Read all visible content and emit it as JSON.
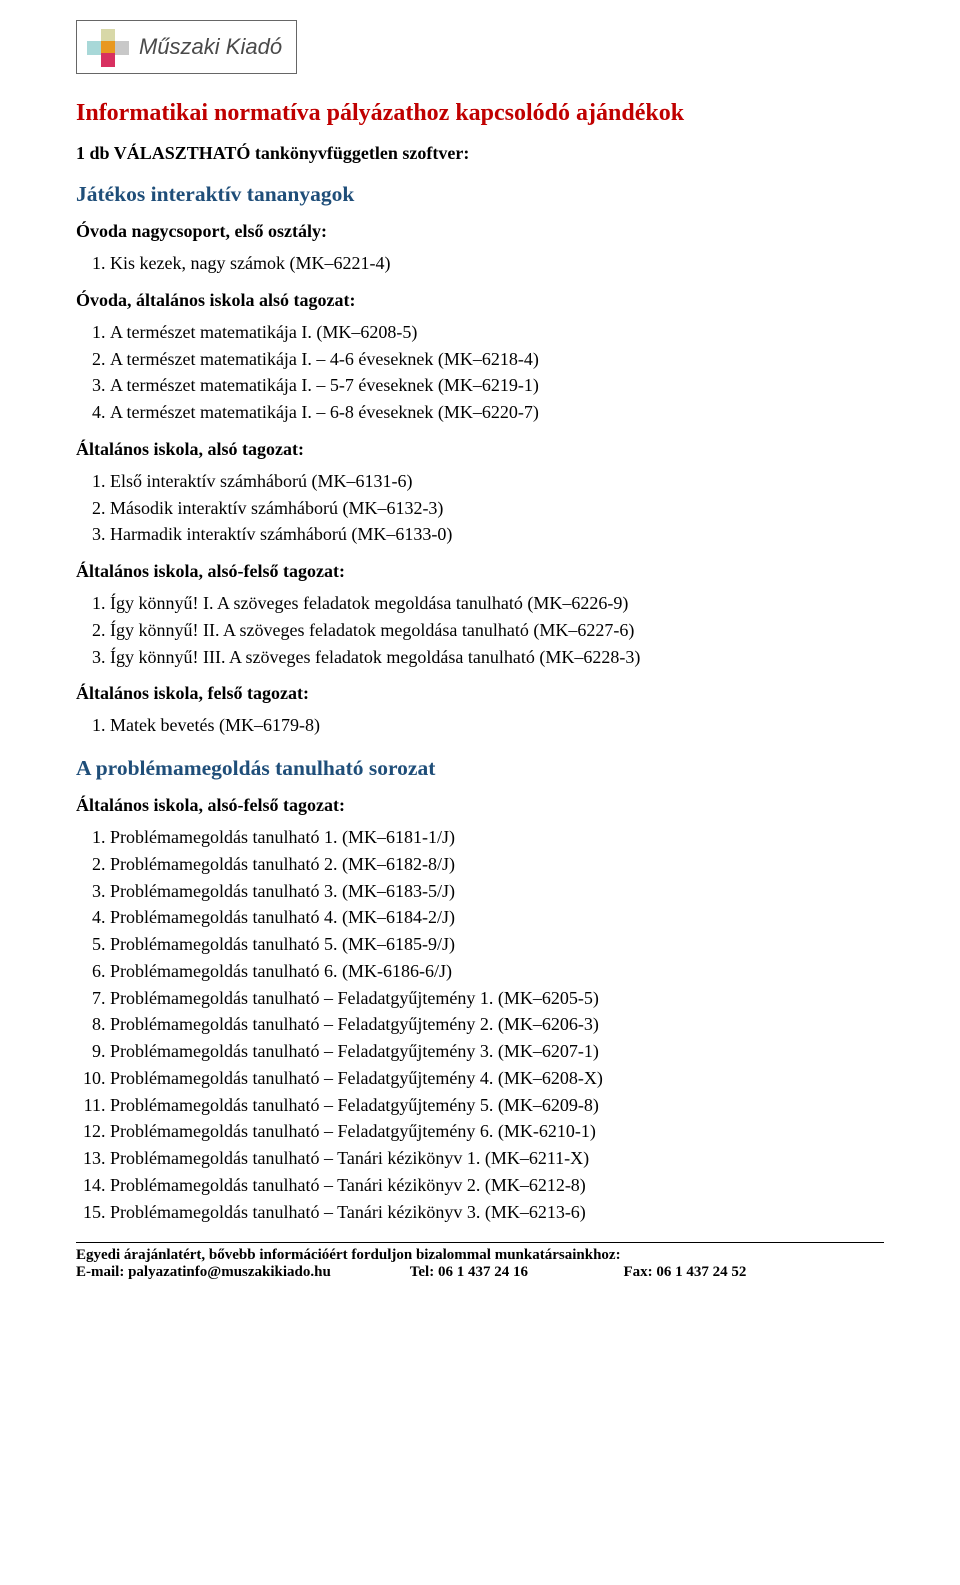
{
  "logo": {
    "name": "Műszaki Kiadó"
  },
  "title": "Informatikai normatíva pályázathoz kapcsolódó ajándékok",
  "choose_line": "1 db VÁLASZTHATÓ tankönyvfüggetlen szoftver:",
  "sections": {
    "jatekos": {
      "heading": "Játékos interaktív tananyagok",
      "groups": {
        "ovoda_nagy": {
          "label": "Óvoda nagycsoport, első osztály:",
          "items": [
            "Kis kezek, nagy számok (MK–6221-4)"
          ]
        },
        "ovoda_also": {
          "label": "Óvoda, általános iskola alsó tagozat:",
          "items": [
            "A természet matematikája I. (MK–6208-5)",
            "A természet matematikája I. – 4-6 éveseknek (MK–6218-4)",
            "A természet matematikája I. – 5-7 éveseknek (MK–6219-1)",
            "A természet matematikája I. – 6-8 éveseknek (MK–6220-7)"
          ]
        },
        "alt_also": {
          "label": "Általános iskola, alsó tagozat:",
          "items": [
            "Első interaktív számháború (MK–6131-6)",
            "Második interaktív számháború (MK–6132-3)",
            "Harmadik interaktív számháború (MK–6133-0)"
          ]
        },
        "alt_also_felso": {
          "label": "Általános iskola, alsó-felső tagozat:",
          "items": [
            "Így könnyű! I. A szöveges feladatok megoldása tanulható (MK–6226-9)",
            "Így könnyű! II. A szöveges feladatok megoldása tanulható (MK–6227-6)",
            "Így könnyű! III. A szöveges feladatok megoldása tanulható (MK–6228-3)"
          ]
        },
        "alt_felso": {
          "label": "Általános iskola, felső tagozat:",
          "items": [
            "Matek bevetés (MK–6179-8)"
          ]
        }
      }
    },
    "problema": {
      "heading": "A problémamegoldás tanulható sorozat",
      "groups": {
        "alt_also_felso2": {
          "label": "Általános iskola, alsó-felső tagozat:",
          "items": [
            "Problémamegoldás tanulható 1. (MK–6181-1/J)",
            "Problémamegoldás tanulható 2. (MK–6182-8/J)",
            "Problémamegoldás tanulható 3. (MK–6183-5/J)",
            "Problémamegoldás tanulható 4. (MK–6184-2/J)",
            "Problémamegoldás tanulható 5. (MK–6185-9/J)",
            "Problémamegoldás tanulható 6. (MK-6186-6/J)",
            "Problémamegoldás tanulható – Feladatgyűjtemény 1. (MK–6205-5)",
            "Problémamegoldás tanulható – Feladatgyűjtemény 2. (MK–6206-3)",
            "Problémamegoldás tanulható – Feladatgyűjtemény 3. (MK–6207-1)",
            "Problémamegoldás tanulható – Feladatgyűjtemény 4. (MK–6208-X)",
            "Problémamegoldás tanulható – Feladatgyűjtemény 5. (MK–6209-8)",
            "Problémamegoldás tanulható – Feladatgyűjtemény 6. (MK-6210-1)",
            "Problémamegoldás tanulható – Tanári kézikönyv 1. (MK–6211-X)",
            "Problémamegoldás tanulható – Tanári kézikönyv 2. (MK–6212-8)",
            "Problémamegoldás tanulható – Tanári kézikönyv 3. (MK–6213-6)"
          ]
        }
      }
    }
  },
  "footer": {
    "line1": "Egyedi árajánlatért, bővebb információért forduljon bizalommal munkatársainkhoz:",
    "email_label": "E-mail: palyazatinfo@muszakikiado.hu",
    "tel": "Tel: 06 1 437 24 16",
    "fax": "Fax: 06 1 437 24 52"
  },
  "colors": {
    "title": "#c00000",
    "section_heading": "#1f4e79",
    "body_text": "#000000",
    "background": "#ffffff"
  },
  "typography": {
    "body_font": "Times New Roman",
    "body_size_pt": 14,
    "title_size_pt": 18,
    "heading_size_pt": 16
  }
}
